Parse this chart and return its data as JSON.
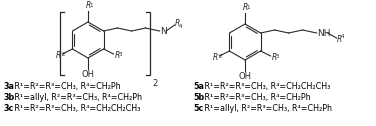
{
  "bg_color": "#ffffff",
  "line_color": "#2a2a2a",
  "text_color": "#000000",
  "figsize": [
    3.76,
    1.26
  ],
  "dpi": 100,
  "labels_left": [
    {
      "bold": "3a",
      "text": " R¹=R²=R³=CH₃, R⁴=CH₂Ph"
    },
    {
      "bold": "3b",
      "text": " R¹=allyl, R²=R³=CH₃, R⁴=CH₂Ph"
    },
    {
      "bold": "3c",
      "text": " R¹=R²=R³=CH₃, R⁴=CH₂CH₂CH₃"
    }
  ],
  "labels_right": [
    {
      "bold": "5a",
      "text": " R¹=R²=R³=CH₃, R⁴=CH₂CH₂CH₃"
    },
    {
      "bold": "5b",
      "text": " R¹=R²=R³=CH₃, R⁴=CH₂Ph"
    },
    {
      "bold": "5c",
      "text": " R¹=allyl, R²=R³=CH₃, R⁴=CH₂Ph"
    }
  ]
}
